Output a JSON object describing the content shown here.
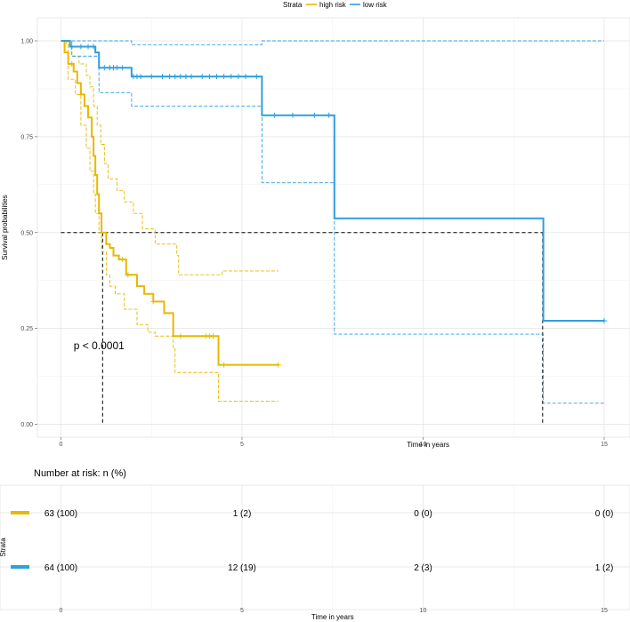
{
  "chart_data": [
    {
      "type": "line",
      "subtype": "kaplan-meier",
      "xlabel": "Time in years",
      "ylabel": "Survival probabilities",
      "xlim": [
        0,
        15
      ],
      "ylim": [
        0,
        1
      ],
      "xticks": [
        "0",
        "5",
        "10",
        "15"
      ],
      "yticks": [
        "0.00",
        "0.25",
        "0.50",
        "0.75",
        "1.00"
      ],
      "grid": true,
      "legend": {
        "title": "Strata",
        "position": "top",
        "entries": [
          "high risk",
          "low risk"
        ]
      },
      "annotation": "p < 0.0001",
      "median_line_y": 0.5,
      "medians": [
        1.15,
        13.3
      ],
      "colors": {
        "high risk": "#E7B800",
        "low risk": "#2E9FDF",
        "median": "#000000"
      },
      "series": [
        {
          "name": "high risk",
          "survival": [
            [
              0,
              1.0
            ],
            [
              0.1,
              0.97
            ],
            [
              0.2,
              0.94
            ],
            [
              0.35,
              0.92
            ],
            [
              0.45,
              0.89
            ],
            [
              0.55,
              0.86
            ],
            [
              0.65,
              0.83
            ],
            [
              0.75,
              0.8
            ],
            [
              0.85,
              0.75
            ],
            [
              0.9,
              0.7
            ],
            [
              0.95,
              0.65
            ],
            [
              1.0,
              0.6
            ],
            [
              1.05,
              0.55
            ],
            [
              1.12,
              0.5
            ],
            [
              1.25,
              0.47
            ],
            [
              1.35,
              0.46
            ],
            [
              1.45,
              0.44
            ],
            [
              1.6,
              0.43
            ],
            [
              1.8,
              0.39
            ],
            [
              2.1,
              0.36
            ],
            [
              2.3,
              0.34
            ],
            [
              2.55,
              0.32
            ],
            [
              2.85,
              0.29
            ],
            [
              3.1,
              0.23
            ],
            [
              4.2,
              0.23
            ],
            [
              4.35,
              0.155
            ],
            [
              6.0,
              0.155
            ]
          ],
          "upper": [
            [
              0,
              1.0
            ],
            [
              0.15,
              0.99
            ],
            [
              0.3,
              0.96
            ],
            [
              0.5,
              0.94
            ],
            [
              0.7,
              0.91
            ],
            [
              0.8,
              0.88
            ],
            [
              0.9,
              0.83
            ],
            [
              1.0,
              0.78
            ],
            [
              1.1,
              0.73
            ],
            [
              1.2,
              0.68
            ],
            [
              1.3,
              0.64
            ],
            [
              1.55,
              0.61
            ],
            [
              1.75,
              0.58
            ],
            [
              2.0,
              0.55
            ],
            [
              2.25,
              0.51
            ],
            [
              2.6,
              0.47
            ],
            [
              3.2,
              0.44
            ],
            [
              3.25,
              0.39
            ],
            [
              4.4,
              0.39
            ],
            [
              4.45,
              0.4
            ],
            [
              6.0,
              0.4
            ]
          ],
          "lower": [
            [
              0,
              1.0
            ],
            [
              0.2,
              0.9
            ],
            [
              0.4,
              0.86
            ],
            [
              0.55,
              0.78
            ],
            [
              0.7,
              0.72
            ],
            [
              0.8,
              0.66
            ],
            [
              0.9,
              0.6
            ],
            [
              0.95,
              0.55
            ],
            [
              1.05,
              0.5
            ],
            [
              1.12,
              0.45
            ],
            [
              1.25,
              0.39
            ],
            [
              1.35,
              0.36
            ],
            [
              1.5,
              0.34
            ],
            [
              1.75,
              0.3
            ],
            [
              2.1,
              0.26
            ],
            [
              2.4,
              0.24
            ],
            [
              2.6,
              0.23
            ],
            [
              3.1,
              0.2
            ],
            [
              3.15,
              0.135
            ],
            [
              4.3,
              0.135
            ],
            [
              4.35,
              0.06
            ],
            [
              6.0,
              0.06
            ]
          ],
          "censor_times": [
            0.3,
            1.7,
            1.85,
            2.55,
            3.3,
            4.0,
            4.1,
            4.2,
            4.5,
            6.0
          ]
        },
        {
          "name": "low risk",
          "survival": [
            [
              0,
              1.0
            ],
            [
              0.25,
              0.985
            ],
            [
              0.9,
              0.985
            ],
            [
              0.95,
              0.97
            ],
            [
              1.05,
              0.93
            ],
            [
              1.85,
              0.93
            ],
            [
              1.95,
              0.907
            ],
            [
              5.5,
              0.907
            ],
            [
              5.55,
              0.806
            ],
            [
              7.5,
              0.806
            ],
            [
              7.55,
              0.537
            ],
            [
              13.3,
              0.537
            ],
            [
              13.32,
              0.27
            ],
            [
              15,
              0.27
            ]
          ],
          "upper": [
            [
              0,
              1.0
            ],
            [
              1.9,
              1.0
            ],
            [
              1.95,
              0.99
            ],
            [
              5.5,
              0.99
            ],
            [
              5.55,
              1.0
            ],
            [
              15,
              1.0
            ]
          ],
          "lower": [
            [
              0,
              1.0
            ],
            [
              0.3,
              0.96
            ],
            [
              0.95,
              0.96
            ],
            [
              1.05,
              0.865
            ],
            [
              1.9,
              0.865
            ],
            [
              1.95,
              0.83
            ],
            [
              5.5,
              0.83
            ],
            [
              5.55,
              0.63
            ],
            [
              7.5,
              0.63
            ],
            [
              7.55,
              0.235
            ],
            [
              13.3,
              0.235
            ],
            [
              13.32,
              0.055
            ],
            [
              15,
              0.055
            ]
          ],
          "censor_times": [
            0.3,
            0.55,
            0.75,
            0.9,
            1.2,
            1.35,
            1.45,
            1.55,
            1.7,
            2.0,
            2.1,
            2.2,
            2.5,
            2.8,
            3.0,
            3.15,
            3.3,
            3.45,
            3.6,
            3.9,
            4.1,
            4.3,
            4.5,
            4.7,
            4.9,
            5.1,
            5.4,
            5.9,
            6.4,
            7.0,
            7.4,
            15.0
          ]
        }
      ]
    },
    {
      "type": "table",
      "title": "Number at risk: n (%)",
      "xlabel": "Time in years",
      "ylabel": "Strata",
      "xlim": [
        0,
        15
      ],
      "xticks": [
        "0",
        "5",
        "10",
        "15"
      ],
      "times": [
        0,
        5,
        10,
        15
      ],
      "rows": [
        {
          "name": "high risk",
          "cells": [
            "63 (100)",
            "1 (2)",
            "0 (0)",
            "0 (0)"
          ]
        },
        {
          "name": "low risk",
          "cells": [
            "64 (100)",
            "12 (19)",
            "2 (3)",
            "1 (2)"
          ]
        }
      ]
    }
  ]
}
